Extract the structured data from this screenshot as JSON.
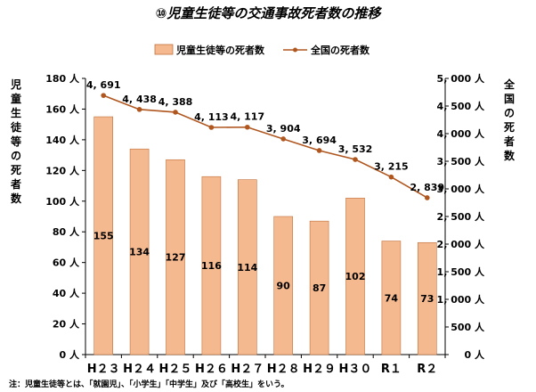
{
  "chart_data": {
    "type": "bar",
    "title": "⑩児童生徒等の交通事故死者数の推移",
    "categories": [
      "H23",
      "H24",
      "H25",
      "H26",
      "H27",
      "H28",
      "H29",
      "H30",
      "R1",
      "R2"
    ],
    "category_display": [
      "H２３",
      "H２４",
      "H２５",
      "H２６",
      "H２７",
      "H２８",
      "H２９",
      "H３０",
      "R１",
      "R２"
    ],
    "series": [
      {
        "name": "児童生徒等の死者数",
        "type": "bar",
        "axis": "left",
        "color": "#f5b98f",
        "values": [
          155,
          134,
          127,
          116,
          114,
          90,
          87,
          102,
          74,
          73
        ]
      },
      {
        "name": "全国の死者数",
        "type": "line",
        "axis": "right",
        "color": "#b0561f",
        "values": [
          4691,
          4438,
          4388,
          4113,
          4117,
          3904,
          3694,
          3532,
          3215,
          2839
        ],
        "labels": [
          "4, 691",
          "4, 438",
          "4, 388",
          "4, 113",
          "4, 117",
          "3, 904",
          "3, 694",
          "3, 532",
          "3, 215",
          "2, 839"
        ]
      }
    ],
    "ylabel": "児童生徒等の死者数",
    "y2label": "全国の死者数",
    "ylim": [
      0,
      180
    ],
    "y2lim": [
      0,
      5000
    ],
    "yticks": [
      "0 人",
      "20 人",
      "40 人",
      "60 人",
      "80 人",
      "100 人",
      "120 人",
      "140 人",
      "160 人",
      "180 人"
    ],
    "y2ticks": [
      "0 人",
      "500 人",
      "1, 000 人",
      "1, 500 人",
      "2, 000 人",
      "2, 500 人",
      "3, 000 人",
      "3, 500 人",
      "4, 000 人",
      "4, 500 人",
      "5, 000 人"
    ],
    "legend_position": "top-center",
    "grid": false
  },
  "note": "注：児童生徒等とは、「就園児」、「小学生」「中学生」及び「高校生」をいう。"
}
